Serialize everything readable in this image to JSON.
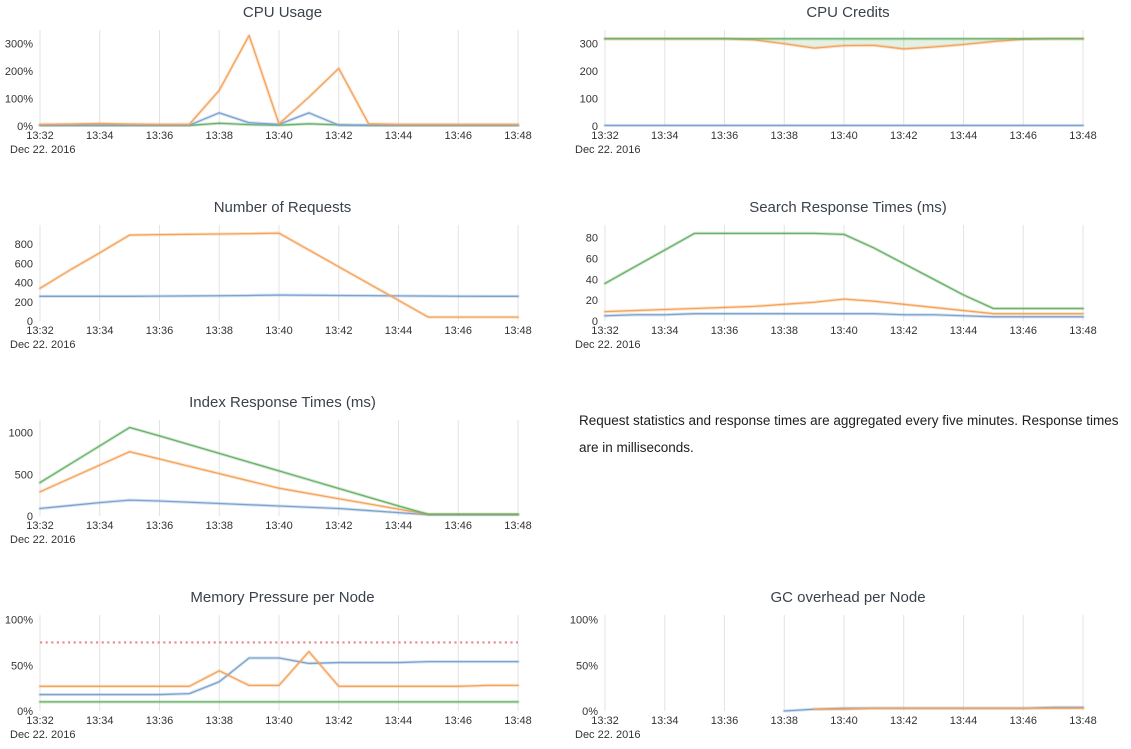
{
  "note": {
    "text": "Request statistics and response times are aggregated every five minutes. Response times are in milliseconds."
  },
  "colors": {
    "orange": "#f5a35b",
    "blue": "#7ba3cf",
    "green": "#68b168",
    "threshold_red": "#e98b8e",
    "gridline": "#e3e3e3",
    "axis_text": "#333333",
    "title_text": "#3a424b"
  },
  "chart_data": [
    {
      "type": "line",
      "title": "CPU Usage",
      "x_ticks": [
        "13:32",
        "13:34",
        "13:36",
        "13:38",
        "13:40",
        "13:42",
        "13:44",
        "13:46",
        "13:48"
      ],
      "date_label": "Dec 22. 2016",
      "x_points": 17,
      "y_max": 350,
      "y_ticks": [
        {
          "value": 0,
          "label": "0%"
        },
        {
          "value": 100,
          "label": "100%"
        },
        {
          "value": 200,
          "label": "200%"
        },
        {
          "value": 300,
          "label": "300%"
        }
      ],
      "series": [
        {
          "color_key": "green",
          "values": [
            2,
            2,
            2,
            2,
            2,
            2,
            10,
            5,
            3,
            8,
            4,
            2,
            2,
            2,
            2,
            2,
            2
          ]
        },
        {
          "color_key": "blue",
          "values": [
            3,
            3,
            3,
            3,
            3,
            3,
            48,
            12,
            6,
            48,
            3,
            3,
            3,
            3,
            3,
            3,
            3
          ]
        },
        {
          "color_key": "orange",
          "values": [
            6,
            7,
            9,
            7,
            6,
            6,
            130,
            330,
            8,
            105,
            210,
            8,
            6,
            6,
            6,
            6,
            6
          ]
        }
      ]
    },
    {
      "type": "line",
      "title": "CPU Credits",
      "x_ticks": [
        "13:32",
        "13:34",
        "13:36",
        "13:38",
        "13:40",
        "13:42",
        "13:44",
        "13:46",
        "13:48"
      ],
      "date_label": "Dec 22. 2016",
      "x_points": 17,
      "y_max": 350,
      "y_ticks": [
        {
          "value": 0,
          "label": "0"
        },
        {
          "value": 100,
          "label": "100"
        },
        {
          "value": 200,
          "label": "200"
        },
        {
          "value": 300,
          "label": "300"
        }
      ],
      "fill_between": {
        "upper_series": 2,
        "lower_series": 1,
        "opacity": 0.18
      },
      "series": [
        {
          "color_key": "blue",
          "values": [
            2,
            2,
            2,
            2,
            2,
            2,
            2,
            2,
            2,
            2,
            2,
            2,
            2,
            2,
            2,
            2,
            2
          ]
        },
        {
          "color_key": "orange",
          "values": [
            318,
            318,
            318,
            318,
            318,
            314,
            300,
            284,
            293,
            294,
            281,
            288,
            297,
            308,
            316,
            318,
            318
          ]
        },
        {
          "color_key": "green",
          "values": [
            318,
            318,
            318,
            318,
            318,
            318,
            318,
            318,
            318,
            318,
            318,
            318,
            318,
            318,
            318,
            318,
            318
          ]
        }
      ]
    },
    {
      "type": "line",
      "title": "Number of Requests",
      "x_ticks": [
        "13:32",
        "13:34",
        "13:36",
        "13:38",
        "13:40",
        "13:42",
        "13:44",
        "13:46",
        "13:48"
      ],
      "date_label": "Dec 22. 2016",
      "x_points": 17,
      "y_max": 1000,
      "y_ticks": [
        {
          "value": 0,
          "label": "0"
        },
        {
          "value": 200,
          "label": "200"
        },
        {
          "value": 400,
          "label": "400"
        },
        {
          "value": 600,
          "label": "600"
        },
        {
          "value": 800,
          "label": "800"
        }
      ],
      "series": [
        {
          "color_key": "blue",
          "values": [
            257,
            257,
            257,
            257,
            259,
            261,
            263,
            266,
            270,
            268,
            266,
            264,
            262,
            260,
            258,
            257,
            257
          ]
        },
        {
          "color_key": "orange",
          "values": [
            340,
            530,
            710,
            895,
            900,
            903,
            906,
            910,
            915,
            740,
            565,
            390,
            215,
            40,
            40,
            40,
            40
          ]
        }
      ]
    },
    {
      "type": "line",
      "title": "Search Response Times (ms)",
      "x_ticks": [
        "13:32",
        "13:34",
        "13:36",
        "13:38",
        "13:40",
        "13:42",
        "13:44",
        "13:46",
        "13:48"
      ],
      "date_label": "Dec 22. 2016",
      "x_points": 17,
      "y_max": 92,
      "y_ticks": [
        {
          "value": 0,
          "label": "0"
        },
        {
          "value": 20,
          "label": "20"
        },
        {
          "value": 40,
          "label": "40"
        },
        {
          "value": 60,
          "label": "60"
        },
        {
          "value": 80,
          "label": "80"
        }
      ],
      "series": [
        {
          "color_key": "blue",
          "values": [
            5,
            6,
            6,
            7,
            7,
            7,
            7,
            7,
            7,
            7,
            6,
            6,
            5,
            4,
            4,
            4,
            4
          ]
        },
        {
          "color_key": "orange",
          "values": [
            9,
            10,
            11,
            12,
            13,
            14,
            16,
            18,
            21,
            19,
            16,
            13,
            10,
            7,
            7,
            7,
            7
          ]
        },
        {
          "color_key": "green",
          "values": [
            36,
            52,
            68,
            84,
            84,
            84,
            84,
            84,
            83,
            70,
            55,
            40,
            25,
            12,
            12,
            12,
            12
          ]
        }
      ]
    },
    {
      "type": "line",
      "title": "Index Response Times (ms)",
      "x_ticks": [
        "13:32",
        "13:34",
        "13:36",
        "13:38",
        "13:40",
        "13:42",
        "13:44",
        "13:46",
        "13:48"
      ],
      "date_label": "Dec 22. 2016",
      "x_points": 17,
      "y_max": 1150,
      "y_ticks": [
        {
          "value": 0,
          "label": "0"
        },
        {
          "value": 500,
          "label": "500"
        },
        {
          "value": 1000,
          "label": "1000"
        }
      ],
      "series": [
        {
          "color_key": "blue",
          "values": [
            90,
            125,
            160,
            190,
            180,
            165,
            150,
            135,
            120,
            105,
            90,
            65,
            40,
            15,
            15,
            15,
            15
          ]
        },
        {
          "color_key": "orange",
          "values": [
            290,
            450,
            610,
            770,
            683,
            595,
            508,
            420,
            333,
            270,
            207,
            145,
            82,
            20,
            20,
            20,
            20
          ]
        },
        {
          "color_key": "green",
          "values": [
            400,
            620,
            840,
            1060,
            960,
            855,
            750,
            645,
            540,
            435,
            330,
            225,
            120,
            20,
            20,
            20,
            20
          ]
        }
      ]
    },
    {
      "type": "line",
      "title": "Memory Pressure per Node",
      "x_ticks": [
        "13:32",
        "13:34",
        "13:36",
        "13:38",
        "13:40",
        "13:42",
        "13:44",
        "13:46",
        "13:48"
      ],
      "date_label": "Dec 22. 2016",
      "x_points": 17,
      "y_max": 105,
      "y_ticks": [
        {
          "value": 0,
          "label": "0%"
        },
        {
          "value": 50,
          "label": "50%"
        },
        {
          "value": 100,
          "label": "100%"
        }
      ],
      "threshold": {
        "value": 75,
        "color_key": "threshold_red",
        "style": "dotted"
      },
      "series": [
        {
          "color_key": "green",
          "values": [
            10,
            10,
            10,
            10,
            10,
            10,
            10,
            10,
            10,
            10,
            10,
            10,
            10,
            10,
            10,
            10,
            10
          ]
        },
        {
          "color_key": "blue",
          "values": [
            18,
            18,
            18,
            18,
            18,
            19,
            32,
            58,
            58,
            52,
            53,
            53,
            53,
            54,
            54,
            54,
            54
          ]
        },
        {
          "color_key": "orange",
          "values": [
            27,
            27,
            27,
            27,
            27,
            27,
            44,
            28,
            28,
            65,
            27,
            27,
            27,
            27,
            27,
            28,
            28
          ]
        }
      ]
    },
    {
      "type": "line",
      "title": "GC overhead per Node",
      "x_ticks": [
        "13:32",
        "13:34",
        "13:36",
        "13:38",
        "13:40",
        "13:42",
        "13:44",
        "13:46",
        "13:48"
      ],
      "date_label": "Dec 22. 2016",
      "x_points": 17,
      "y_max": 105,
      "y_ticks": [
        {
          "value": 0,
          "label": "0%"
        },
        {
          "value": 50,
          "label": "50%"
        },
        {
          "value": 100,
          "label": "100%"
        }
      ],
      "series": [
        {
          "color_key": "blue",
          "values": [
            null,
            null,
            null,
            null,
            null,
            null,
            0,
            2,
            3,
            3,
            3,
            3,
            3,
            3,
            3,
            4,
            4
          ]
        },
        {
          "color_key": "orange",
          "values": [
            null,
            null,
            null,
            null,
            null,
            null,
            null,
            2,
            2,
            3,
            3,
            3,
            3,
            3,
            3,
            3,
            3
          ]
        }
      ]
    }
  ]
}
